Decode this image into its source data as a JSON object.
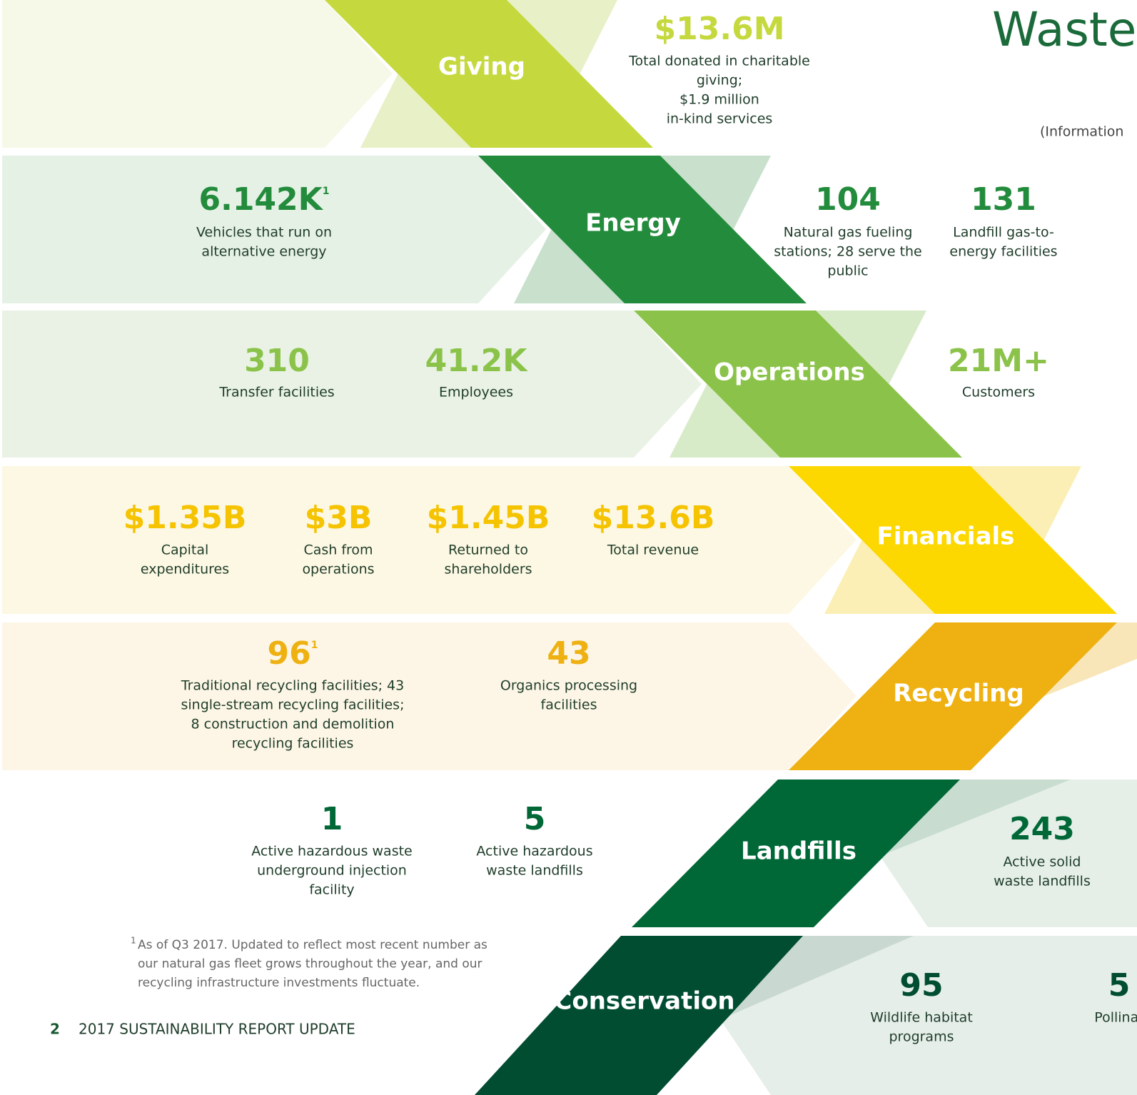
{
  "title": "Waste",
  "info_note": "(Information",
  "sections": [
    {
      "label": "Giving",
      "stats": [
        {
          "value": "$13.6M",
          "desc": [
            "Total donated in charitable",
            "giving;",
            "$1.9 million",
            "in-kind services"
          ]
        }
      ]
    },
    {
      "label": "Energy",
      "stats": [
        {
          "value": "6.142K",
          "sup": "1",
          "desc": [
            "Vehicles that run on",
            "alternative energy"
          ]
        },
        {
          "value": "104",
          "desc": [
            "Natural gas fueling",
            "stations; 28 serve the",
            "public"
          ]
        },
        {
          "value": "131",
          "desc": [
            "Landfill gas-to-",
            "energy facilities"
          ]
        }
      ]
    },
    {
      "label": "Operations",
      "stats": [
        {
          "value": "310",
          "desc": [
            "Transfer facilities"
          ]
        },
        {
          "value": "41.2K",
          "desc": [
            "Employees"
          ]
        },
        {
          "value": "21M+",
          "desc": [
            "Customers"
          ]
        }
      ]
    },
    {
      "label": "Financials",
      "stats": [
        {
          "value": "$1.35B",
          "desc": [
            "Capital",
            "expenditures"
          ]
        },
        {
          "value": "$3B",
          "desc": [
            "Cash from",
            "operations"
          ]
        },
        {
          "value": "$1.45B",
          "desc": [
            "Returned to",
            "shareholders"
          ]
        },
        {
          "value": "$13.6B",
          "desc": [
            "Total revenue"
          ]
        }
      ]
    },
    {
      "label": "Recycling",
      "stats": [
        {
          "value": "96",
          "sup": "1",
          "desc": [
            "Traditional recycling facilities; 43",
            "single-stream recycling facilities;",
            "8 construction and demolition",
            "recycling facilities"
          ]
        },
        {
          "value": "43",
          "desc": [
            "Organics processing",
            "facilities"
          ]
        }
      ]
    },
    {
      "label": "Landfills",
      "stats": [
        {
          "value": "1",
          "desc": [
            "Active hazardous waste",
            "underground injection",
            "facility"
          ]
        },
        {
          "value": "5",
          "desc": [
            "Active hazardous",
            "waste landfills"
          ]
        },
        {
          "value": "243",
          "desc": [
            "Active solid",
            "waste landfills"
          ]
        }
      ]
    },
    {
      "label": "Conservation",
      "stats": [
        {
          "value": "95",
          "desc": [
            "Wildlife habitat",
            "programs"
          ]
        },
        {
          "value": "5",
          "desc": [
            "Pollinat"
          ]
        }
      ]
    }
  ],
  "footnote": {
    "mark": "1",
    "lines": [
      "As of Q3 2017. Updated to reflect most recent number as",
      "our natural gas fleet grows throughout the year, and our",
      "recycling infrastructure investments fluctuate."
    ]
  },
  "footer": {
    "page": "2",
    "text": "2017 SUSTAINABILITY REPORT UPDATE"
  }
}
